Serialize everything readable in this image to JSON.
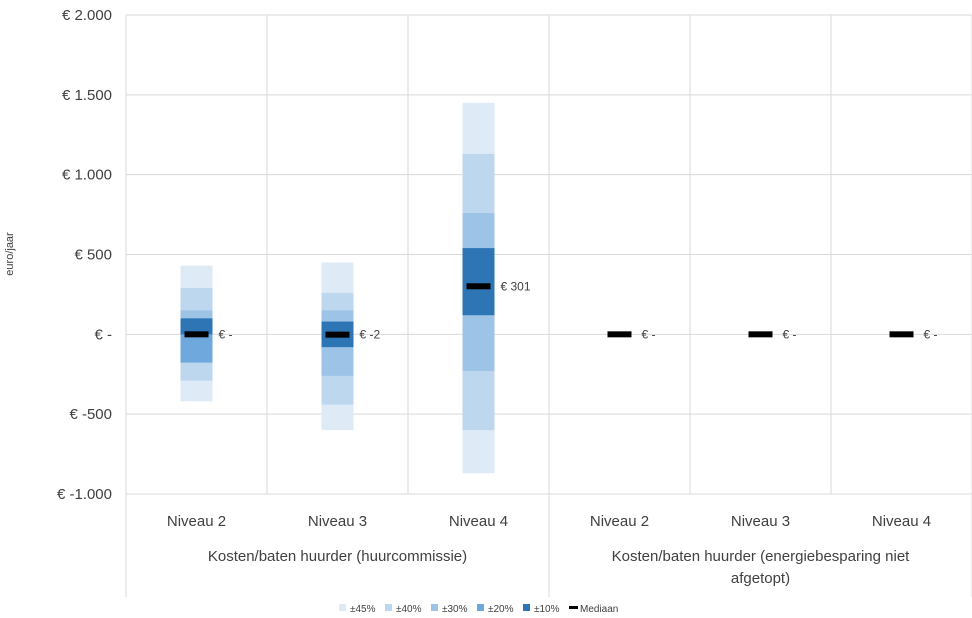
{
  "chart_data": {
    "type": "floating-bar",
    "ylabel": "euro/jaar",
    "ylim": [
      -1000,
      2000
    ],
    "yticks": [
      2000,
      1500,
      1000,
      500,
      0,
      -500,
      -1000
    ],
    "ytick_labels": [
      "€ 2.000",
      "€ 1.500",
      "€ 1.000",
      "€ 500",
      "€ -",
      "€ -500",
      "€ -1.000"
    ],
    "grid": true,
    "legend_position": "bottom",
    "categories": [
      "Niveau 2",
      "Niveau 3",
      "Niveau 4",
      "Niveau 2",
      "Niveau 3",
      "Niveau 4"
    ],
    "groups": [
      {
        "label": "Kosten/baten huurder (huurcommissie)",
        "span": [
          0,
          3
        ]
      },
      {
        "label": "Kosten/baten huurder (energiebesparing niet afgetopt)",
        "span": [
          3,
          6
        ]
      }
    ],
    "bands": [
      {
        "name": "±45%",
        "color": "#deebf7"
      },
      {
        "name": "±40%",
        "color": "#bdd7ee"
      },
      {
        "name": "±30%",
        "color": "#9dc3e6"
      },
      {
        "name": "±20%",
        "color": "#6fa8dc"
      },
      {
        "name": "±10%",
        "color": "#2e75b6"
      }
    ],
    "median_legend": "Mediaan",
    "median_color": "#000000",
    "series": [
      {
        "category": "Niveau 2",
        "median": 0,
        "median_label": "€ -",
        "bands": {
          "±45%": [
            -420,
            430
          ],
          "±40%": [
            -290,
            290
          ],
          "±30%": [
            -180,
            150
          ],
          "±20%": [
            -175,
            100
          ],
          "±10%": [
            0,
            100
          ]
        }
      },
      {
        "category": "Niveau 3",
        "median": -2,
        "median_label": "€ -2",
        "bands": {
          "±45%": [
            -600,
            450
          ],
          "±40%": [
            -440,
            260
          ],
          "±30%": [
            -260,
            150
          ],
          "±20%": [
            -80,
            80
          ],
          "±10%": [
            -80,
            80
          ]
        }
      },
      {
        "category": "Niveau 4",
        "median": 301,
        "median_label": "€ 301",
        "bands": {
          "±45%": [
            -870,
            1450
          ],
          "±40%": [
            -600,
            1130
          ],
          "±30%": [
            -230,
            760
          ],
          "±20%": [
            120,
            540
          ],
          "±10%": [
            120,
            540
          ]
        }
      },
      {
        "category": "Niveau 2",
        "median": 0,
        "median_label": "€ -",
        "bands": {}
      },
      {
        "category": "Niveau 3",
        "median": 0,
        "median_label": "€ -",
        "bands": {}
      },
      {
        "category": "Niveau 4",
        "median": 0,
        "median_label": "€ -",
        "bands": {}
      }
    ]
  }
}
